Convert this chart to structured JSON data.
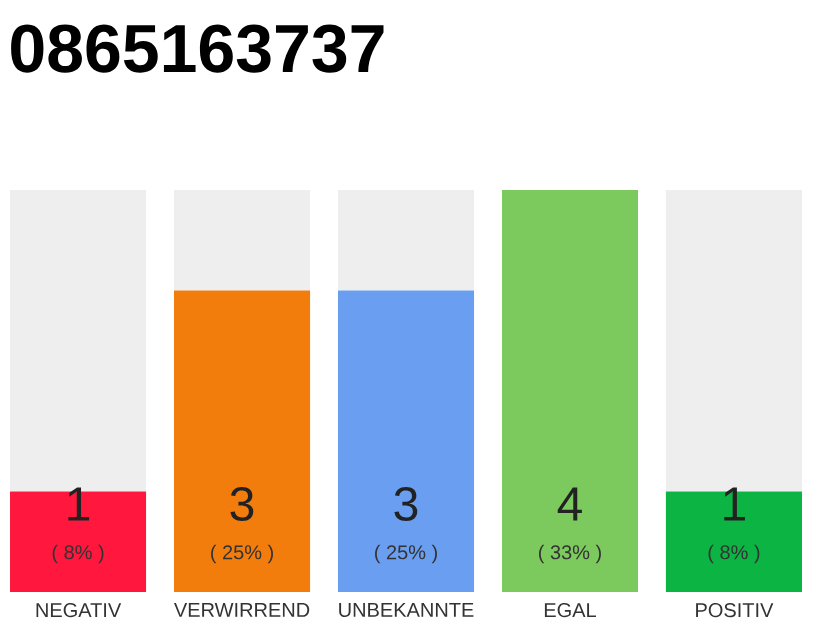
{
  "chart_data": {
    "type": "bar",
    "title": "0865163737",
    "stacked": true,
    "categories": [
      "NEGATIV",
      "VERWIRREND",
      "UNBEKANNTE",
      "EGAL",
      "POSITIV"
    ],
    "series": [
      {
        "values": [
          1,
          3,
          3,
          4,
          1
        ],
        "colors": [
          "#ff173d",
          "#f27c0c",
          "#699ef0",
          "#7cc95e",
          "#0bb443"
        ],
        "value_labels": [
          "1",
          "3",
          "3",
          "4",
          "1"
        ]
      },
      {
        "values": [
          3,
          1,
          1,
          0,
          3
        ],
        "color": "#eeeeee"
      }
    ],
    "annotations": [
      "( 8% )",
      "( 25% )",
      "( 25% )",
      "( 33% )",
      "( 8% )"
    ]
  }
}
